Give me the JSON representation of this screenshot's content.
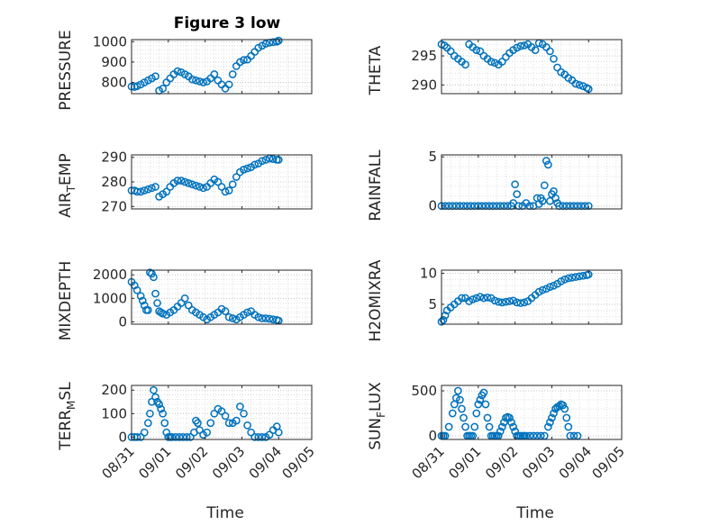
{
  "title": "Figure 3 low",
  "marker_color": "#0072BD",
  "chart_data": [
    {
      "type": "scatter",
      "ylabel": "PRESSURE",
      "ylim": [
        745,
        1010
      ],
      "yticks": [
        800,
        900,
        1000
      ],
      "xlim": [
        0,
        4.9
      ],
      "xticks": [
        0,
        1,
        2,
        3,
        4,
        4.9
      ],
      "xticklabels": [
        "08/31",
        "09/01",
        "09/02",
        "09/03",
        "09/04",
        "09/05"
      ],
      "grid": true,
      "x": [
        0,
        0.08,
        0.15,
        0.25,
        0.35,
        0.45,
        0.55,
        0.65,
        0.75,
        0.85,
        0.95,
        1.05,
        1.15,
        1.25,
        1.35,
        1.45,
        1.55,
        1.65,
        1.75,
        1.85,
        1.95,
        2.05,
        2.15,
        2.25,
        2.35,
        2.45,
        2.55,
        2.65,
        2.75,
        2.85,
        2.95,
        3.05,
        3.15,
        3.25,
        3.35,
        3.45,
        3.55,
        3.65,
        3.75,
        3.85,
        3.95,
        4.0
      ],
      "y": [
        780,
        778,
        782,
        790,
        800,
        810,
        820,
        830,
        760,
        770,
        800,
        820,
        840,
        855,
        850,
        840,
        830,
        815,
        810,
        805,
        800,
        805,
        820,
        840,
        810,
        790,
        770,
        790,
        840,
        880,
        900,
        910,
        912,
        930,
        950,
        970,
        980,
        990,
        995,
        998,
        1000,
        1005
      ]
    },
    {
      "type": "scatter",
      "ylabel": "THETA",
      "ylim": [
        288.5,
        297.8
      ],
      "yticks": [
        290,
        295
      ],
      "xlim": [
        0,
        4.9
      ],
      "xticks": [
        0,
        1,
        2,
        3,
        4,
        4.9
      ],
      "xticklabels": [
        "08/31",
        "09/01",
        "09/02",
        "09/03",
        "09/04",
        "09/05"
      ],
      "grid": true,
      "x": [
        0,
        0.08,
        0.15,
        0.25,
        0.35,
        0.45,
        0.55,
        0.65,
        0.75,
        0.85,
        0.95,
        1.05,
        1.15,
        1.25,
        1.35,
        1.45,
        1.55,
        1.65,
        1.75,
        1.85,
        1.95,
        2.05,
        2.15,
        2.25,
        2.35,
        2.45,
        2.55,
        2.65,
        2.75,
        2.85,
        2.95,
        3.05,
        3.15,
        3.25,
        3.35,
        3.45,
        3.55,
        3.65,
        3.75,
        3.85,
        3.95,
        4.0
      ],
      "y": [
        297,
        296.8,
        296.4,
        295.8,
        295,
        294.5,
        294,
        293.5,
        297,
        296.5,
        296,
        295.8,
        295,
        294.5,
        294,
        293.8,
        293.5,
        294,
        294.8,
        295.5,
        296,
        296.4,
        296.7,
        296.8,
        297,
        296.5,
        296,
        297.2,
        297,
        296.5,
        295.8,
        294.5,
        293,
        292.2,
        291.8,
        291.2,
        290.8,
        290.2,
        290,
        289.8,
        289.5,
        289.3
      ]
    },
    {
      "type": "scatter",
      "ylabel": "AIR_TEMP",
      "ylim": [
        269,
        291
      ],
      "yticks": [
        270,
        280,
        290
      ],
      "xlim": [
        0,
        4.9
      ],
      "xticks": [
        0,
        1,
        2,
        3,
        4,
        4.9
      ],
      "xticklabels": [
        "08/31",
        "09/01",
        "09/02",
        "09/03",
        "09/04",
        "09/05"
      ],
      "grid": true,
      "x": [
        0,
        0.08,
        0.15,
        0.25,
        0.35,
        0.45,
        0.55,
        0.65,
        0.75,
        0.85,
        0.95,
        1.05,
        1.15,
        1.25,
        1.35,
        1.45,
        1.55,
        1.65,
        1.75,
        1.85,
        1.95,
        2.05,
        2.15,
        2.25,
        2.35,
        2.45,
        2.55,
        2.65,
        2.75,
        2.85,
        2.95,
        3.05,
        3.15,
        3.25,
        3.35,
        3.45,
        3.55,
        3.65,
        3.75,
        3.85,
        3.95,
        4.0
      ],
      "y": [
        276.5,
        276.5,
        276,
        276,
        276.5,
        277,
        277.5,
        278,
        274,
        275,
        276,
        278,
        279.5,
        280.5,
        280.5,
        280,
        279.5,
        279,
        278.5,
        278,
        277.5,
        278,
        279.5,
        281,
        280,
        278,
        276,
        276.5,
        279,
        282,
        284,
        285,
        285.5,
        286,
        287,
        287.5,
        288.5,
        289,
        289.5,
        289.3,
        289,
        289
      ]
    },
    {
      "type": "scatter",
      "ylabel": "RAINFALL",
      "ylim": [
        -0.3,
        5.2
      ],
      "yticks": [
        0,
        5
      ],
      "xlim": [
        0,
        4.9
      ],
      "xticks": [
        0,
        1,
        2,
        3,
        4,
        4.9
      ],
      "xticklabels": [
        "08/31",
        "09/01",
        "09/02",
        "09/03",
        "09/04",
        "09/05"
      ],
      "grid": true,
      "x": [
        0,
        0.1,
        0.2,
        0.3,
        0.4,
        0.5,
        0.6,
        0.7,
        0.8,
        0.9,
        1.0,
        1.1,
        1.2,
        1.3,
        1.4,
        1.5,
        1.6,
        1.7,
        1.8,
        1.9,
        1.95,
        2.0,
        2.05,
        2.1,
        2.2,
        2.3,
        2.4,
        2.5,
        2.6,
        2.65,
        2.7,
        2.75,
        2.8,
        2.85,
        2.9,
        2.95,
        3.0,
        3.05,
        3.1,
        3.15,
        3.2,
        3.3,
        3.4,
        3.5,
        3.6,
        3.7,
        3.8,
        3.9,
        4.0
      ],
      "y": [
        0,
        0,
        0,
        0,
        0,
        0,
        0,
        0,
        0,
        0,
        0,
        0,
        0,
        0,
        0,
        0,
        0,
        0,
        0,
        0,
        0.3,
        2.2,
        1.2,
        0,
        0,
        0.3,
        0,
        0,
        0.8,
        0.2,
        0.8,
        0.5,
        2.1,
        4.6,
        4.2,
        0.5,
        1.2,
        1.5,
        0.8,
        0.3,
        0,
        0,
        0,
        0,
        0,
        0,
        0,
        0,
        0
      ]
    },
    {
      "type": "scatter",
      "ylabel": "MIXDEPTH",
      "ylim": [
        -100,
        2200
      ],
      "yticks": [
        0,
        1000,
        2000
      ],
      "xlim": [
        0,
        4.9
      ],
      "xticks": [
        0,
        1,
        2,
        3,
        4,
        4.9
      ],
      "xticklabels": [
        "08/31",
        "09/01",
        "09/02",
        "09/03",
        "09/04",
        "09/05"
      ],
      "grid": true,
      "x": [
        0,
        0.08,
        0.15,
        0.25,
        0.3,
        0.35,
        0.4,
        0.45,
        0.5,
        0.55,
        0.6,
        0.65,
        0.7,
        0.75,
        0.8,
        0.85,
        0.95,
        1.05,
        1.15,
        1.25,
        1.35,
        1.45,
        1.55,
        1.65,
        1.75,
        1.85,
        1.95,
        2.05,
        2.15,
        2.25,
        2.35,
        2.45,
        2.55,
        2.65,
        2.75,
        2.85,
        2.95,
        3.05,
        3.15,
        3.25,
        3.35,
        3.45,
        3.55,
        3.65,
        3.75,
        3.85,
        3.95,
        4.0
      ],
      "y": [
        1700,
        1550,
        1350,
        1100,
        900,
        700,
        500,
        500,
        2100,
        2050,
        1900,
        1200,
        800,
        450,
        400,
        350,
        300,
        400,
        500,
        650,
        800,
        1000,
        700,
        500,
        400,
        300,
        200,
        100,
        200,
        300,
        400,
        550,
        450,
        200,
        150,
        100,
        200,
        300,
        400,
        450,
        300,
        200,
        150,
        150,
        130,
        100,
        80,
        50
      ]
    },
    {
      "type": "scatter",
      "ylabel": "H2OMIXRA",
      "ylim": [
        1.8,
        10.5
      ],
      "yticks": [
        5,
        10
      ],
      "xlim": [
        0,
        4.9
      ],
      "xticks": [
        0,
        1,
        2,
        3,
        4,
        4.9
      ],
      "xticklabels": [
        "08/31",
        "09/01",
        "09/02",
        "09/03",
        "09/04",
        "09/05"
      ],
      "grid": true,
      "x": [
        0,
        0.05,
        0.1,
        0.15,
        0.25,
        0.35,
        0.45,
        0.55,
        0.65,
        0.75,
        0.85,
        0.95,
        1.05,
        1.15,
        1.25,
        1.35,
        1.45,
        1.55,
        1.65,
        1.75,
        1.85,
        1.95,
        2.05,
        2.15,
        2.25,
        2.35,
        2.45,
        2.55,
        2.65,
        2.75,
        2.85,
        2.95,
        3.05,
        3.15,
        3.25,
        3.35,
        3.45,
        3.55,
        3.65,
        3.75,
        3.85,
        3.95,
        4.0
      ],
      "y": [
        2.2,
        2.5,
        3.2,
        4,
        4.5,
        5,
        5.5,
        6,
        6,
        5.5,
        5.8,
        6,
        6.2,
        6,
        6.1,
        6,
        5.6,
        5.4,
        5.3,
        5.4,
        5.5,
        5.6,
        5.3,
        5.2,
        5.3,
        5.5,
        6,
        6.5,
        7,
        7.3,
        7.5,
        7.8,
        8,
        8.3,
        8.7,
        9,
        9.2,
        9.3,
        9.4,
        9.5,
        9.6,
        9.7,
        9.8
      ]
    },
    {
      "type": "scatter",
      "ylabel": "TERR_MSL",
      "ylim": [
        -10,
        220
      ],
      "yticks": [
        0,
        100,
        200
      ],
      "xlim": [
        0,
        4.9
      ],
      "xticks": [
        0,
        1,
        2,
        3,
        4,
        4.9
      ],
      "xticklabels": [
        "08/31",
        "09/01",
        "09/02",
        "09/03",
        "09/04",
        "09/05"
      ],
      "grid": true,
      "x": [
        0,
        0.08,
        0.15,
        0.25,
        0.35,
        0.45,
        0.5,
        0.55,
        0.6,
        0.65,
        0.7,
        0.75,
        0.8,
        0.85,
        0.9,
        0.95,
        1.0,
        1.05,
        1.1,
        1.2,
        1.3,
        1.4,
        1.5,
        1.6,
        1.7,
        1.75,
        1.8,
        1.85,
        1.95,
        2.05,
        2.15,
        2.25,
        2.35,
        2.45,
        2.55,
        2.65,
        2.75,
        2.85,
        2.95,
        3.05,
        3.15,
        3.25,
        3.35,
        3.45,
        3.55,
        3.65,
        3.75,
        3.85,
        3.95,
        4.0
      ],
      "y": [
        0,
        0,
        0,
        0,
        20,
        60,
        100,
        150,
        200,
        170,
        150,
        140,
        120,
        100,
        60,
        20,
        0,
        0,
        0,
        0,
        0,
        0,
        0,
        0,
        20,
        70,
        60,
        30,
        10,
        20,
        60,
        100,
        120,
        110,
        90,
        60,
        60,
        70,
        130,
        100,
        50,
        20,
        0,
        0,
        0,
        0,
        10,
        30,
        45,
        20
      ]
    },
    {
      "type": "scatter",
      "ylabel": "SUN_FLUX",
      "ylim": [
        -40,
        560
      ],
      "yticks": [
        0,
        500
      ],
      "xlim": [
        0,
        4.9
      ],
      "xticks": [
        0,
        1,
        2,
        3,
        4,
        4.9
      ],
      "xticklabels": [
        "08/31",
        "09/01",
        "09/02",
        "09/03",
        "09/04",
        "09/05"
      ],
      "grid": true,
      "x": [
        0,
        0.05,
        0.1,
        0.2,
        0.3,
        0.35,
        0.4,
        0.45,
        0.5,
        0.55,
        0.6,
        0.65,
        0.7,
        0.75,
        0.8,
        0.85,
        0.9,
        0.95,
        1.0,
        1.05,
        1.1,
        1.15,
        1.2,
        1.25,
        1.3,
        1.35,
        1.4,
        1.45,
        1.5,
        1.55,
        1.6,
        1.65,
        1.7,
        1.75,
        1.8,
        1.85,
        1.9,
        1.95,
        2.0,
        2.05,
        2.1,
        2.15,
        2.2,
        2.25,
        2.3,
        2.4,
        2.5,
        2.6,
        2.7,
        2.8,
        2.9,
        2.95,
        3.0,
        3.05,
        3.1,
        3.15,
        3.2,
        3.25,
        3.3,
        3.35,
        3.4,
        3.45,
        3.5,
        3.6,
        3.7
      ],
      "y": [
        0,
        0,
        0,
        100,
        250,
        350,
        420,
        500,
        400,
        300,
        200,
        100,
        0,
        0,
        0,
        0,
        100,
        250,
        350,
        400,
        450,
        480,
        350,
        200,
        100,
        0,
        0,
        0,
        0,
        0,
        50,
        100,
        150,
        200,
        210,
        200,
        150,
        100,
        50,
        0,
        0,
        0,
        0,
        0,
        0,
        0,
        0,
        0,
        0,
        0,
        100,
        150,
        200,
        250,
        300,
        320,
        330,
        350,
        340,
        300,
        200,
        100,
        0,
        0,
        0
      ]
    }
  ],
  "panels": [
    {
      "xlabel": ""
    },
    {
      "xlabel": ""
    },
    {
      "xlabel": ""
    },
    {
      "xlabel": ""
    },
    {
      "xlabel": ""
    },
    {
      "xlabel": ""
    },
    {
      "xlabel": "Time"
    },
    {
      "xlabel": "Time"
    }
  ]
}
